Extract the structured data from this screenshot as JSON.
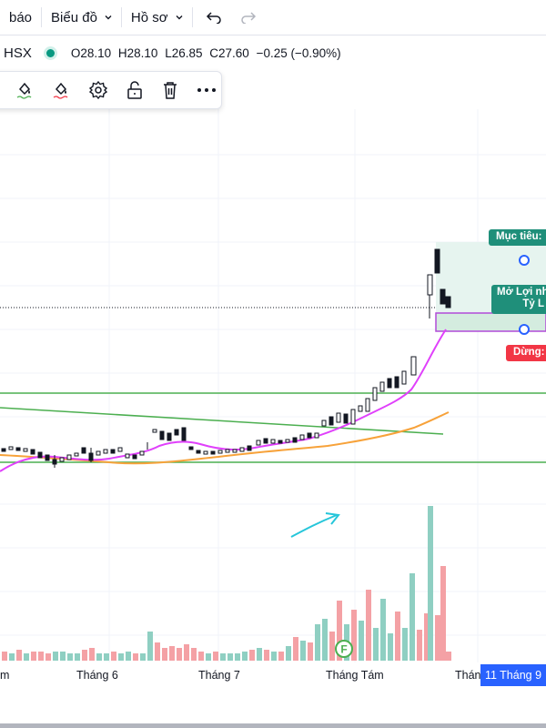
{
  "topbar": {
    "alerts_label": "báo",
    "chart_menu_label": "Biểu đồ",
    "profile_menu_label": "Hồ sơ"
  },
  "legend": {
    "symbol": "HSX",
    "open": "O28.10",
    "high": "H28.10",
    "low": "L26.85",
    "close": "C27.60",
    "change": "−0.25 (−0.90%)",
    "colors": {
      "up": "#089981",
      "down": "#f23645"
    }
  },
  "toolbar": {
    "icons": [
      "fill-brush-icon",
      "line-brush-icon",
      "brush-red-icon",
      "settings-icon",
      "unlock-icon",
      "trash-icon",
      "more-icon"
    ]
  },
  "drawings": {
    "target_label": "Mục tiêu:",
    "entry_label_1": "Mở Lợi nh",
    "entry_label_2": "Tỷ L",
    "stop_label": "Dừng:",
    "event_marker": "F"
  },
  "xaxis": {
    "labels": [
      "m",
      "Tháng 6",
      "Tháng 7",
      "Tháng Tám",
      "Thán"
    ],
    "current_date": "11 Tháng 9"
  },
  "colors": {
    "ma_short": "#e040fb",
    "ma_long": "#f7a23a",
    "trendline": "#4caf50",
    "arrow": "#26c6da",
    "vol_up": "#8fcfc2",
    "vol_down": "#f4a1a5",
    "target_bg": "#1f8f7a",
    "stop_bg": "#f23645",
    "xbadge": "#2962ff"
  }
}
